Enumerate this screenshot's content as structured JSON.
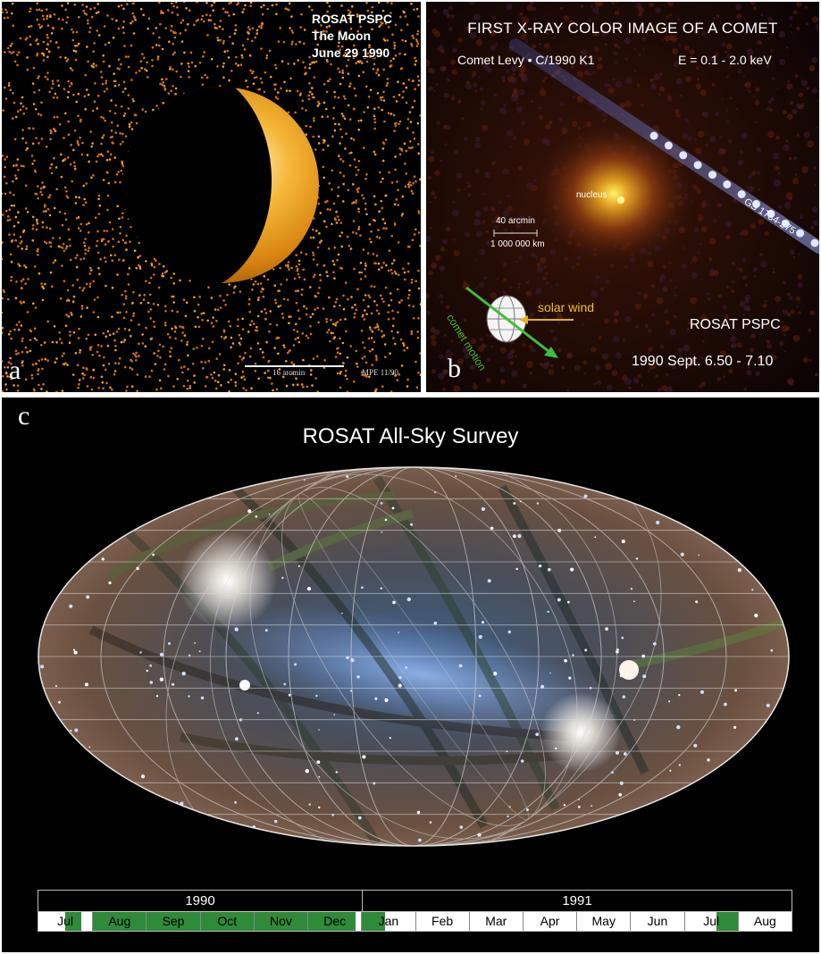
{
  "panel_a": {
    "letter": "a",
    "caption_lines": [
      "ROSAT  PSPC",
      "The Moon",
      "June 29 1990"
    ],
    "scale_label": "16 arcmin",
    "credit": "MPE  11/90"
  },
  "panel_b": {
    "letter": "b",
    "title": "FIRST X-RAY COLOR IMAGE OF A COMET",
    "subtitle_left": "Comet Levy • C/1990 K1",
    "subtitle_right": "E = 0.1 - 2.0 keV",
    "nucleus_label": "nucleus",
    "source_label": "GS 1734-275",
    "scale_top": "40 arcmin",
    "scale_bottom": "1 000 000 km",
    "solar_wind_label": "solar wind",
    "comet_motion_label": "comet motion",
    "instrument": "ROSAT PSPC",
    "dates": "1990 Sept. 6.50 - 7.10"
  },
  "panel_c": {
    "letter": "c",
    "title": "ROSAT All-Sky Survey",
    "timeline": {
      "years": [
        "1990",
        "1991"
      ],
      "months": [
        "Jul",
        "Aug",
        "Sep",
        "Oct",
        "Nov",
        "Dec",
        "Jan",
        "Feb",
        "Mar",
        "Apr",
        "May",
        "Jun",
        "Jul",
        "Aug"
      ],
      "survey_color": "#2f8a3a"
    }
  }
}
